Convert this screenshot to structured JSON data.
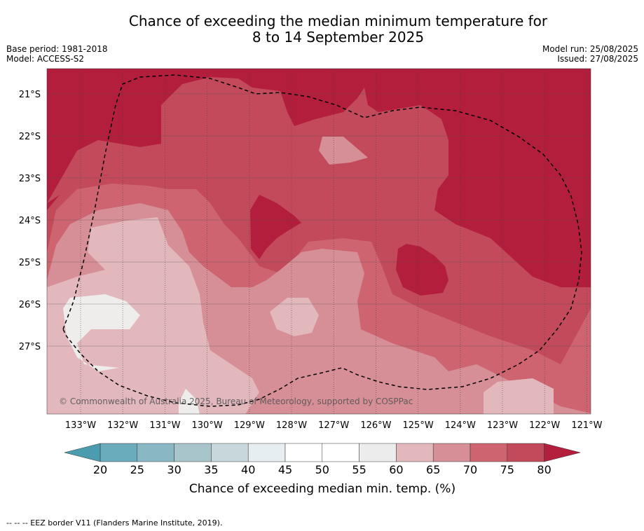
{
  "title": {
    "line1": "Chance of exceeding the median minimum temperature for",
    "line2": "8 to 14 September 2025"
  },
  "meta": {
    "base_period": "Base period: 1981-2018",
    "model": "Model: ACCESS-S2",
    "model_run": "Model run: 25/08/2025",
    "issued": "Issued: 27/08/2025"
  },
  "map": {
    "lat_labels": [
      "21°S",
      "22°S",
      "23°S",
      "24°S",
      "25°S",
      "26°S",
      "27°S"
    ],
    "lon_labels": [
      "133°W",
      "132°W",
      "131°W",
      "130°W",
      "129°W",
      "128°W",
      "127°W",
      "126°W",
      "125°W",
      "124°W",
      "123°W",
      "122°W",
      "121°W"
    ],
    "copyright": "© Commonwealth of Australia 2025, Bureau of Meteorology, supported by COSPPac",
    "colors": {
      "dark_red": "#b21e3b",
      "red": "#c24a5a",
      "mid_red": "#cd6470",
      "pink": "#d68e97",
      "light_pink": "#e2b8bd",
      "near_white": "#efecec"
    }
  },
  "colorbar": {
    "ticks": [
      "20",
      "25",
      "30",
      "35",
      "40",
      "45",
      "50",
      "55",
      "60",
      "65",
      "70",
      "75",
      "80"
    ],
    "label": "Chance of exceeding median min. temp. (%)",
    "colors": [
      "#6aabbc",
      "#8ab7c4",
      "#a9c5cc",
      "#c8d7dc",
      "#e7eef1",
      "#ffffff",
      "#ffffff",
      "#ececec",
      "#e2b8bd",
      "#d68e97",
      "#cd6470",
      "#c24a5a"
    ],
    "low_color": "#4a9cae",
    "high_color": "#b21e3b"
  },
  "footer": "--  --  -- EEZ border V11 (Flanders Marine Institute, 2019)."
}
